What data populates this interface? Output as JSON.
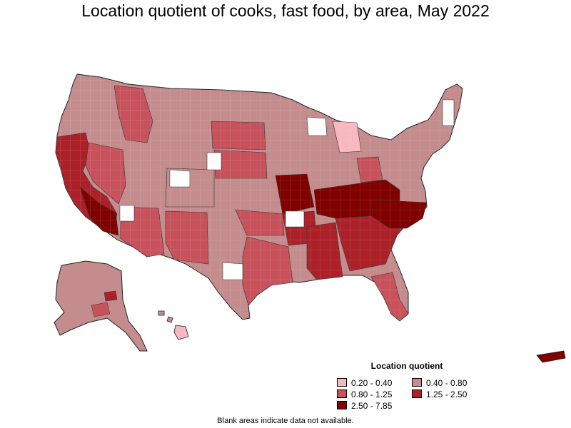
{
  "title": "Location quotient of cooks, fast food, by area, May 2022",
  "legend": {
    "title": "Location quotient",
    "items": [
      {
        "label": "0.20 - 0.40",
        "color": "#f8b8c0"
      },
      {
        "label": "0.40 - 0.80",
        "color": "#c48c8c"
      },
      {
        "label": "0.80 - 1.25",
        "color": "#c8525c"
      },
      {
        "label": "1.25 - 2.50",
        "color": "#ac2028"
      },
      {
        "label": "2.50 - 7.85",
        "color": "#800000"
      }
    ]
  },
  "footnote": "Blank areas indicate data not available.",
  "colors": {
    "border": "#222222",
    "blank": "#ffffff"
  }
}
